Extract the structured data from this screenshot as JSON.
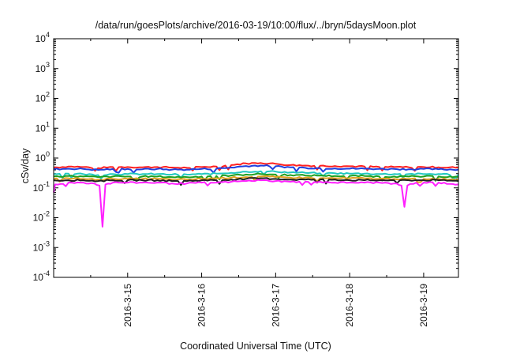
{
  "chart_data": {
    "type": "line",
    "title": "/data/run/goesPlots/archive/2016-03-19/10:00/flux/../bryn/5daysMoon.plot",
    "xlabel": "Coordinated Universal Time (UTC)",
    "ylabel": "cSv/day",
    "yscale": "log",
    "ylim": [
      0.0001,
      10000
    ],
    "xlim": [
      0,
      5.47
    ],
    "y_ticks": [
      {
        "value": 0.0001,
        "base": "10",
        "exp": "-4"
      },
      {
        "value": 0.001,
        "base": "10",
        "exp": "-3"
      },
      {
        "value": 0.01,
        "base": "10",
        "exp": "-2"
      },
      {
        "value": 0.1,
        "base": "10",
        "exp": "-1"
      },
      {
        "value": 1,
        "base": "10",
        "exp": "0"
      },
      {
        "value": 10,
        "base": "10",
        "exp": "1"
      },
      {
        "value": 100,
        "base": "10",
        "exp": "2"
      },
      {
        "value": 1000,
        "base": "10",
        "exp": "3"
      },
      {
        "value": 10000,
        "base": "10",
        "exp": "4"
      }
    ],
    "x_ticks": [
      {
        "value": 1,
        "label": "2016-3-15"
      },
      {
        "value": 2,
        "label": "2016-3-16"
      },
      {
        "value": 3,
        "label": "2016-3-17"
      },
      {
        "value": 4,
        "label": "2016-3-18"
      },
      {
        "value": 5,
        "label": "2016-3-19"
      }
    ],
    "grid": false,
    "series": [
      {
        "color": "#ff2020",
        "x": [
          0,
          0.2,
          0.4,
          0.6,
          0.8,
          1.0,
          1.2,
          1.4,
          1.6,
          1.8,
          2.0,
          2.2,
          2.4,
          2.6,
          2.8,
          3.0,
          3.2,
          3.4,
          3.6,
          3.8,
          4.0,
          4.2,
          4.4,
          4.6,
          4.8,
          5.0,
          5.2,
          5.47
        ],
        "y": [
          0.48,
          0.52,
          0.5,
          0.46,
          0.5,
          0.5,
          0.49,
          0.5,
          0.48,
          0.47,
          0.5,
          0.52,
          0.58,
          0.66,
          0.68,
          0.64,
          0.58,
          0.56,
          0.55,
          0.54,
          0.53,
          0.52,
          0.5,
          0.5,
          0.49,
          0.5,
          0.49,
          0.48
        ]
      },
      {
        "color": "#2040e0",
        "x": [
          0,
          0.2,
          0.4,
          0.6,
          0.8,
          1.0,
          1.2,
          1.4,
          1.6,
          1.8,
          2.0,
          2.2,
          2.4,
          2.6,
          2.8,
          3.0,
          3.2,
          3.4,
          3.6,
          3.8,
          4.0,
          4.2,
          4.4,
          4.6,
          4.8,
          5.0,
          5.2,
          5.47
        ],
        "y": [
          0.42,
          0.44,
          0.43,
          0.4,
          0.43,
          0.43,
          0.42,
          0.43,
          0.41,
          0.41,
          0.43,
          0.44,
          0.48,
          0.54,
          0.56,
          0.53,
          0.49,
          0.47,
          0.46,
          0.45,
          0.44,
          0.44,
          0.43,
          0.43,
          0.42,
          0.43,
          0.42,
          0.41
        ]
      },
      {
        "color": "#20c8c0",
        "x": [
          0,
          0.2,
          0.4,
          0.6,
          0.8,
          1.0,
          1.2,
          1.4,
          1.6,
          1.8,
          2.0,
          2.2,
          2.4,
          2.6,
          2.8,
          3.0,
          3.2,
          3.4,
          3.6,
          3.8,
          4.0,
          4.2,
          4.4,
          4.6,
          4.8,
          5.0,
          5.2,
          5.47
        ],
        "y": [
          0.29,
          0.3,
          0.29,
          0.27,
          0.29,
          0.29,
          0.29,
          0.29,
          0.28,
          0.28,
          0.29,
          0.3,
          0.32,
          0.35,
          0.36,
          0.35,
          0.33,
          0.32,
          0.31,
          0.31,
          0.3,
          0.3,
          0.29,
          0.29,
          0.29,
          0.29,
          0.29,
          0.28
        ]
      },
      {
        "color": "#20a020",
        "x": [
          0,
          0.2,
          0.4,
          0.6,
          0.8,
          1.0,
          1.2,
          1.4,
          1.6,
          1.8,
          2.0,
          2.2,
          2.4,
          2.6,
          2.8,
          3.0,
          3.2,
          3.4,
          3.6,
          3.8,
          4.0,
          4.2,
          4.4,
          4.6,
          4.8,
          5.0,
          5.2,
          5.47
        ],
        "y": [
          0.24,
          0.25,
          0.24,
          0.23,
          0.24,
          0.24,
          0.24,
          0.24,
          0.23,
          0.23,
          0.24,
          0.25,
          0.26,
          0.28,
          0.29,
          0.28,
          0.27,
          0.26,
          0.26,
          0.25,
          0.25,
          0.25,
          0.24,
          0.24,
          0.24,
          0.24,
          0.24,
          0.23
        ]
      },
      {
        "color": "#e0a020",
        "x": [
          0,
          0.2,
          0.4,
          0.6,
          0.8,
          1.0,
          1.2,
          1.4,
          1.6,
          1.8,
          2.0,
          2.2,
          2.4,
          2.6,
          2.8,
          3.0,
          3.2,
          3.4,
          3.6,
          3.8,
          4.0,
          4.2,
          4.4,
          4.6,
          4.8,
          5.0,
          5.2,
          5.47
        ],
        "y": [
          0.2,
          0.21,
          0.2,
          0.19,
          0.2,
          0.2,
          0.2,
          0.2,
          0.19,
          0.19,
          0.2,
          0.21,
          0.22,
          0.23,
          0.24,
          0.23,
          0.22,
          0.22,
          0.21,
          0.21,
          0.21,
          0.21,
          0.2,
          0.2,
          0.2,
          0.2,
          0.2,
          0.19
        ]
      },
      {
        "color": "#202020",
        "x": [
          0,
          0.2,
          0.4,
          0.6,
          0.8,
          1.0,
          1.2,
          1.4,
          1.6,
          1.8,
          2.0,
          2.2,
          2.4,
          2.6,
          2.8,
          3.0,
          3.2,
          3.4,
          3.6,
          3.8,
          4.0,
          4.2,
          4.4,
          4.6,
          4.8,
          5.0,
          5.2,
          5.47
        ],
        "y": [
          0.18,
          0.18,
          0.18,
          0.17,
          0.18,
          0.18,
          0.18,
          0.18,
          0.17,
          0.17,
          0.18,
          0.18,
          0.19,
          0.2,
          0.21,
          0.2,
          0.19,
          0.19,
          0.19,
          0.19,
          0.18,
          0.18,
          0.18,
          0.18,
          0.18,
          0.18,
          0.18,
          0.17
        ]
      },
      {
        "color": "#ff20ff",
        "x": [
          0,
          0.02,
          0.2,
          0.4,
          0.55,
          0.62,
          0.66,
          0.7,
          0.8,
          1.0,
          1.2,
          1.4,
          1.6,
          1.8,
          2.0,
          2.2,
          2.4,
          2.6,
          2.8,
          3.0,
          3.2,
          3.4,
          3.6,
          3.8,
          4.0,
          4.2,
          4.4,
          4.6,
          4.7,
          4.74,
          4.78,
          4.9,
          5.0,
          5.2,
          5.47
        ],
        "y": [
          0.07,
          0.13,
          0.15,
          0.15,
          0.14,
          0.12,
          0.005,
          0.13,
          0.15,
          0.15,
          0.15,
          0.15,
          0.14,
          0.14,
          0.15,
          0.15,
          0.16,
          0.17,
          0.18,
          0.17,
          0.16,
          0.16,
          0.16,
          0.15,
          0.15,
          0.15,
          0.15,
          0.14,
          0.12,
          0.023,
          0.12,
          0.15,
          0.15,
          0.15,
          0.13
        ]
      }
    ]
  }
}
